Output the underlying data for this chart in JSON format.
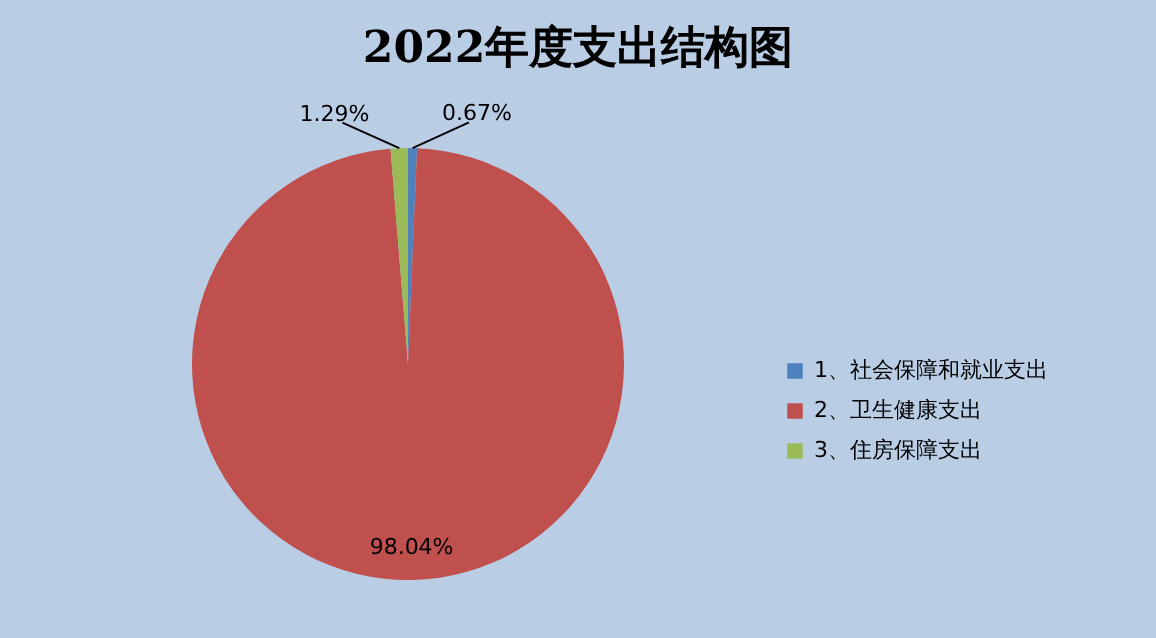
{
  "chart_data": {
    "type": "pie",
    "title": "2022年度支出结构图",
    "categories": [
      "1、社会保障和就业支出",
      "2、卫生健康支出",
      "3、住房保障支出"
    ],
    "values": [
      0.67,
      98.04,
      1.29
    ],
    "colors": [
      "#4f81bd",
      "#c0504d",
      "#9bbb59"
    ],
    "value_labels": [
      "0.67%",
      "98.04%",
      "1.29%"
    ],
    "legend": "right"
  }
}
